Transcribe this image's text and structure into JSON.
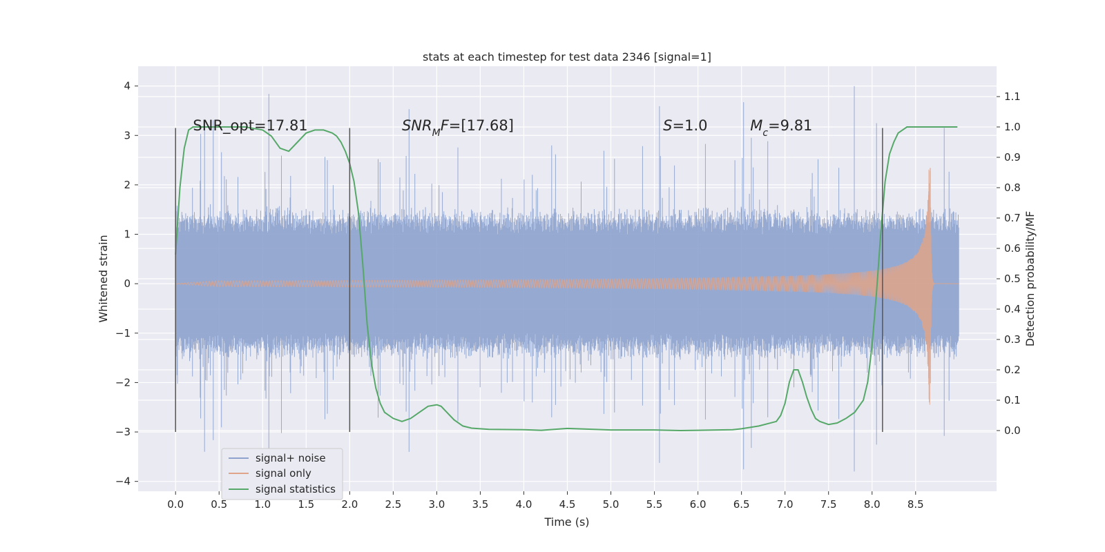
{
  "chart_data": {
    "type": "line",
    "title": "stats at each timestep for test data 2346 [signal=1]",
    "xlabel": "Time (s)",
    "ylabel": "Whitened strain",
    "y2label": "Detection probability/MF",
    "xlim": [
      -0.43,
      9.43
    ],
    "ylim": [
      -4.2,
      4.4
    ],
    "y2lim": [
      -0.2,
      1.2
    ],
    "xticks": [
      0.0,
      0.5,
      1.0,
      1.5,
      2.0,
      2.5,
      3.0,
      3.5,
      4.0,
      4.5,
      5.0,
      5.5,
      6.0,
      6.5,
      7.0,
      7.5,
      8.0,
      8.5
    ],
    "xtick_labels": [
      "0.0",
      "0.5",
      "1.0",
      "1.5",
      "2.0",
      "2.5",
      "3.0",
      "3.5",
      "4.0",
      "4.5",
      "5.0",
      "5.5",
      "6.0",
      "6.5",
      "7.0",
      "7.5",
      "8.0",
      "8.5"
    ],
    "yticks": [
      -4,
      -3,
      -2,
      -1,
      0,
      1,
      2,
      3,
      4
    ],
    "ytick_labels": [
      "−4",
      "−3",
      "−2",
      "−1",
      "0",
      "1",
      "2",
      "3",
      "4"
    ],
    "y2ticks": [
      0.0,
      0.1,
      0.2,
      0.3,
      0.4,
      0.5,
      0.6,
      0.7,
      0.8,
      0.9,
      1.0,
      1.1
    ],
    "y2tick_labels": [
      "0.0",
      "0.1",
      "0.2",
      "0.3",
      "0.4",
      "0.5",
      "0.6",
      "0.7",
      "0.8",
      "0.9",
      "1.0",
      "1.1"
    ],
    "grid": true,
    "legend_position": "lower-left",
    "series": [
      {
        "name": "signal+ noise",
        "axis": "left",
        "color": "#8da2cd",
        "kind": "noise",
        "x_range": [
          0.0,
          9.0
        ],
        "envelope": 1.3,
        "spike_max": 4.0,
        "spike_min": -3.8
      },
      {
        "name": "signal only",
        "axis": "left",
        "color": "#e0a48a",
        "kind": "chirp",
        "x_range": [
          0.0,
          8.67
        ],
        "merger_time": 8.67,
        "peak_amplitude": 2.5,
        "ringdown_end": 8.72
      },
      {
        "name": "signal statistics",
        "axis": "right",
        "color": "#55a868",
        "x": [
          0.0,
          0.05,
          0.08,
          0.1,
          0.15,
          0.2,
          0.3,
          0.5,
          0.8,
          1.0,
          1.1,
          1.2,
          1.3,
          1.4,
          1.5,
          1.6,
          1.7,
          1.8,
          1.85,
          1.9,
          1.95,
          2.0,
          2.05,
          2.1,
          2.15,
          2.2,
          2.25,
          2.3,
          2.35,
          2.4,
          2.5,
          2.6,
          2.7,
          2.8,
          2.9,
          3.0,
          3.05,
          3.1,
          3.2,
          3.3,
          3.4,
          3.6,
          4.0,
          4.2,
          4.5,
          5.0,
          5.5,
          5.8,
          6.0,
          6.4,
          6.5,
          6.7,
          6.9,
          6.95,
          7.0,
          7.05,
          7.1,
          7.15,
          7.2,
          7.25,
          7.3,
          7.35,
          7.4,
          7.5,
          7.6,
          7.7,
          7.8,
          7.9,
          7.95,
          8.0,
          8.05,
          8.1,
          8.15,
          8.2,
          8.25,
          8.3,
          8.35,
          8.4,
          8.5,
          8.6,
          8.7,
          8.8,
          8.9,
          8.98
        ],
        "y": [
          0.58,
          0.8,
          0.88,
          0.93,
          0.99,
          1.0,
          1.0,
          1.0,
          1.0,
          0.99,
          0.97,
          0.93,
          0.92,
          0.95,
          0.98,
          0.99,
          0.99,
          0.98,
          0.97,
          0.95,
          0.92,
          0.88,
          0.82,
          0.72,
          0.55,
          0.35,
          0.22,
          0.14,
          0.09,
          0.06,
          0.04,
          0.03,
          0.04,
          0.06,
          0.08,
          0.085,
          0.08,
          0.065,
          0.035,
          0.015,
          0.008,
          0.004,
          0.003,
          0.001,
          0.007,
          0.002,
          0.002,
          0.0,
          0.001,
          0.003,
          0.006,
          0.015,
          0.03,
          0.05,
          0.09,
          0.16,
          0.2,
          0.2,
          0.16,
          0.11,
          0.07,
          0.04,
          0.03,
          0.02,
          0.025,
          0.04,
          0.06,
          0.1,
          0.16,
          0.28,
          0.45,
          0.65,
          0.82,
          0.91,
          0.95,
          0.98,
          0.99,
          1.0,
          1.0,
          1.0,
          1.0,
          1.0,
          1.0,
          1.0
        ]
      }
    ],
    "vlines": [
      {
        "x": 0.0,
        "ymin": -3.0,
        "ymax": 3.15
      },
      {
        "x": 2.0,
        "ymin": -3.0,
        "ymax": 3.15
      },
      {
        "x": 8.12,
        "ymin": -3.0,
        "ymax": 3.15
      }
    ],
    "annotations": [
      {
        "id": "snr-opt",
        "x": 0.2,
        "y": 3.1,
        "parts": [
          {
            "t": "SNR_opt=17.81"
          }
        ]
      },
      {
        "id": "snr-mf",
        "x": 2.6,
        "y": 3.1,
        "parts": [
          {
            "t": "SNR",
            "i": true
          },
          {
            "t": "M",
            "i": true,
            "sub": true
          },
          {
            "t": "F",
            "i": true
          },
          {
            "t": "=[17.68]"
          }
        ]
      },
      {
        "id": "s-value",
        "x": 5.6,
        "y": 3.1,
        "parts": [
          {
            "t": "S",
            "i": true
          },
          {
            "t": "=1.0"
          }
        ]
      },
      {
        "id": "mc-value",
        "x": 6.6,
        "y": 3.1,
        "parts": [
          {
            "t": "M",
            "i": true
          },
          {
            "t": "c",
            "i": true,
            "sub": true
          },
          {
            "t": "=9.81"
          }
        ]
      }
    ]
  }
}
